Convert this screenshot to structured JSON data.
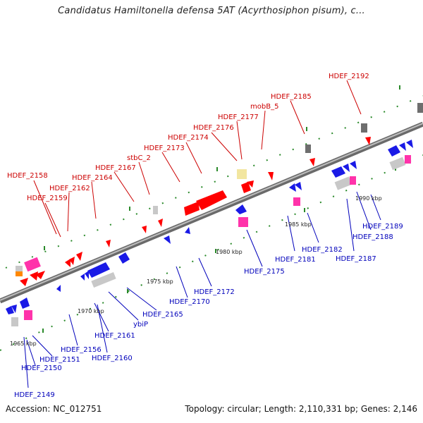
{
  "title": "Candidatus Hamiltonella defensa 5AT (Acyrthosiphon pisum), c...",
  "footer": {
    "accession": "Accession: NC_012751",
    "summary": "Topology: circular; Length: 2,110,331 bp; Genes: 2,146"
  },
  "colors": {
    "backbone": "#8c8c8c",
    "forward_label": "#cc0000",
    "reverse_label": "#0000bb",
    "tick": "#2a8a2a",
    "gene_red": "#ff0000",
    "gene_blue": "#1a1ae6",
    "gene_magenta": "#ff33aa",
    "gene_gray": "#c8c8c8",
    "gene_darkgray": "#6e6e6e",
    "gene_yellow": "#f2e6a0",
    "gene_orange": "#ff8800"
  },
  "scale": [
    "1965 kbp",
    "1970 kbp",
    "1975 kbp",
    "1980 kbp",
    "1985 kbp",
    "1990 kbp"
  ],
  "forward_genes": [
    "HDEF_2158",
    "HDEF_2159",
    "HDEF_2162",
    "HDEF_2164",
    "HDEF_2167",
    "stbC_2",
    "HDEF_2173",
    "HDEF_2174",
    "HDEF_2176",
    "HDEF_2177",
    "mobB_5",
    "HDEF_2185",
    "HDEF_2192"
  ],
  "reverse_genes": [
    "HDEF_2149",
    "HDEF_2150",
    "HDEF_2151",
    "HDEF_2156",
    "HDEF_2160",
    "HDEF_2161",
    "ybiP",
    "HDEF_2165",
    "HDEF_2170",
    "HDEF_2172",
    "HDEF_2175",
    "HDEF_2181",
    "HDEF_2182",
    "HDEF_2187",
    "HDEF_2188",
    "HDEF_2189"
  ]
}
